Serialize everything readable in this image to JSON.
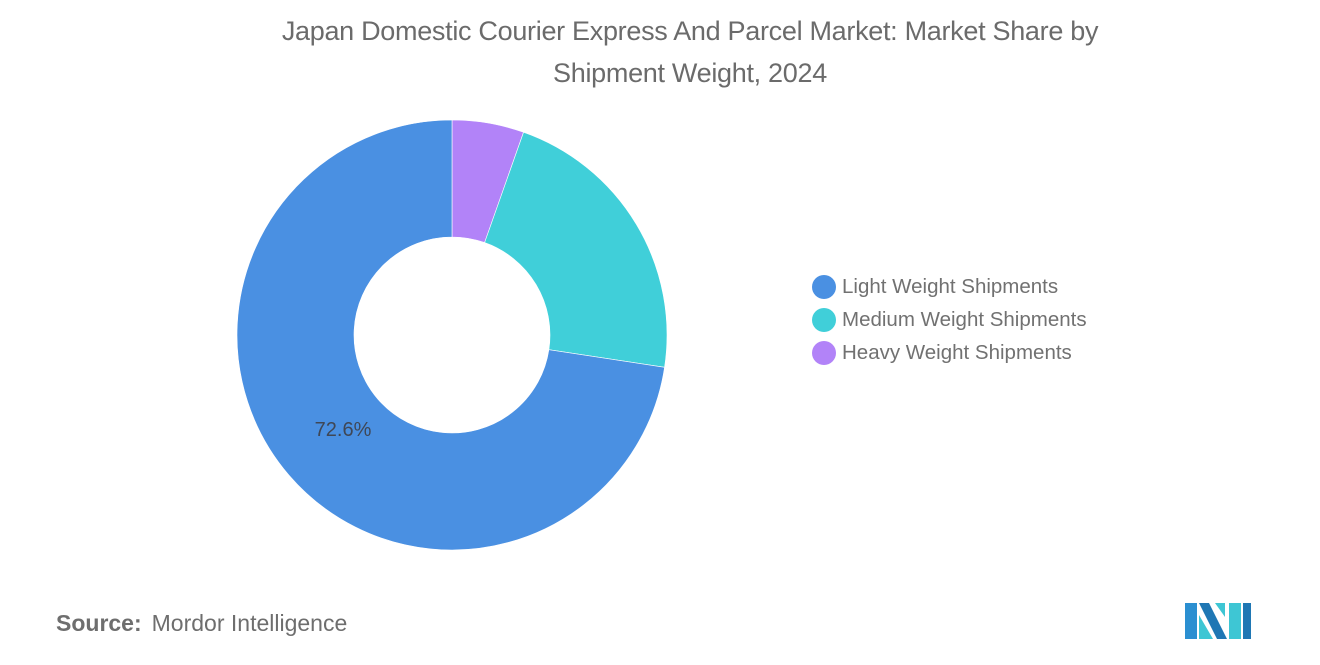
{
  "title": {
    "line1": "Japan Domestic Courier Express And Parcel Market: Market Share by",
    "line2": "Shipment Weight, 2024"
  },
  "legend": {
    "items": [
      {
        "label": "Light Weight Shipments",
        "color": "#4a90e2"
      },
      {
        "label": "Medium Weight Shipments",
        "color": "#40cfd9"
      },
      {
        "label": "Heavy Weight Shipments",
        "color": "#b283f8"
      }
    ]
  },
  "source": {
    "key": "Source:",
    "value": "Mordor Intelligence"
  },
  "chart_data": {
    "type": "pie",
    "subtype": "donut",
    "title": "Japan Domestic Courier Express And Parcel Market: Market Share by Shipment Weight, 2024",
    "categories": [
      "Light Weight Shipments",
      "Medium Weight Shipments",
      "Heavy Weight Shipments"
    ],
    "values": [
      72.6,
      22.0,
      5.4
    ],
    "unit": "%",
    "colors": [
      "#4a90e2",
      "#40cfd9",
      "#b283f8"
    ],
    "data_labels": [
      {
        "category": "Light Weight Shipments",
        "text": "72.6%"
      }
    ],
    "start_angle_deg": 0,
    "direction": "clockwise",
    "slice_order_from_top": [
      "Heavy Weight Shipments",
      "Medium Weight Shipments",
      "Light Weight Shipments"
    ],
    "legend_position": "right",
    "center": [
      452,
      335
    ],
    "outer_radius": 215,
    "inner_radius": 98
  }
}
